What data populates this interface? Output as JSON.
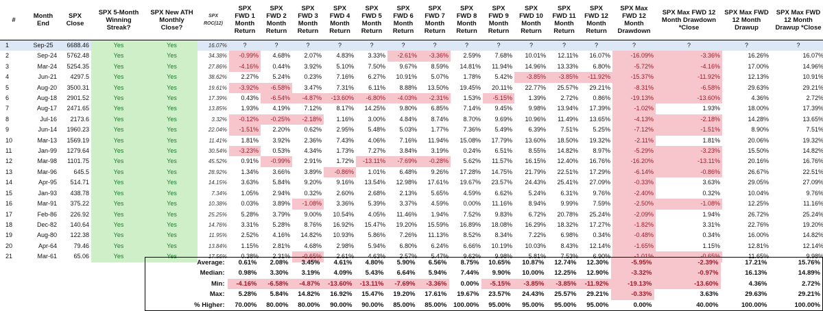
{
  "headers": [
    "#",
    "Month End",
    "SPX Close",
    "SPX 5-Month Winning Streak?",
    "SPX New ATH Monthly Close?",
    "SPX ROC(12)",
    "SPX FWD 1 Month Return",
    "SPX FWD 2 Month Return",
    "SPX FWD 3 Month Return",
    "SPX FWD 4 Month Return",
    "SPX FWD 5 Month Return",
    "SPX FWD 6 Month Return",
    "SPX FWD 7 Month Return",
    "SPX FWD 8 Month Return",
    "SPX FWD 9 Month Return",
    "SPX FWD 10 Month Return",
    "SPX FWD 11 Month Return",
    "SPX FWD 12 Month Return",
    "SPX Max FWD 12 Month Drawdown",
    "SPX Max FWD 12 Month Drawdown *Close",
    "SPX Max FWD 12 Month Drawup",
    "SPX Max FWD 12 Month Drawup *Close"
  ],
  "rows": [
    [
      "1",
      "Sep-25",
      "6688.46",
      "Yes",
      "Yes",
      "16.07%",
      "?",
      "?",
      "?",
      "?",
      "?",
      "?",
      "?",
      "?",
      "?",
      "?",
      "?",
      "?",
      "?",
      "?",
      "?",
      "?"
    ],
    [
      "2",
      "Sep-24",
      "5762.48",
      "Yes",
      "Yes",
      "34.38%",
      "-0.99%",
      "4.68%",
      "2.07%",
      "4.83%",
      "3.33%",
      "-2.61%",
      "-3.36%",
      "2.59%",
      "7.68%",
      "10.01%",
      "12.11%",
      "16.07%",
      "-16.09%",
      "-3.36%",
      "16.26%",
      "16.07%"
    ],
    [
      "3",
      "Mar-24",
      "5254.35",
      "Yes",
      "Yes",
      "27.86%",
      "-4.16%",
      "0.44%",
      "3.92%",
      "5.10%",
      "7.50%",
      "9.67%",
      "8.59%",
      "14.81%",
      "11.94%",
      "14.96%",
      "13.33%",
      "6.80%",
      "-5.72%",
      "-4.16%",
      "17.00%",
      "14.96%"
    ],
    [
      "4",
      "Jun-21",
      "4297.5",
      "Yes",
      "Yes",
      "38.62%",
      "2.27%",
      "5.24%",
      "0.23%",
      "7.16%",
      "6.27%",
      "10.91%",
      "5.07%",
      "1.78%",
      "5.42%",
      "-3.85%",
      "-3.85%",
      "-11.92%",
      "-15.37%",
      "-11.92%",
      "12.13%",
      "10.91%"
    ],
    [
      "5",
      "Aug-20",
      "3500.31",
      "Yes",
      "Yes",
      "19.61%",
      "-3.92%",
      "-6.58%",
      "3.47%",
      "7.31%",
      "6.11%",
      "8.88%",
      "13.50%",
      "19.45%",
      "20.11%",
      "22.77%",
      "25.57%",
      "29.21%",
      "-8.31%",
      "-6.58%",
      "29.63%",
      "29.21%"
    ],
    [
      "6",
      "Aug-18",
      "2901.52",
      "Yes",
      "Yes",
      "17.39%",
      "0.43%",
      "-6.54%",
      "-4.87%",
      "-13.60%",
      "-6.80%",
      "-4.03%",
      "-2.31%",
      "1.53%",
      "-5.15%",
      "1.39%",
      "2.72%",
      "0.86%",
      "-19.13%",
      "-13.60%",
      "4.36%",
      "2.72%"
    ],
    [
      "7",
      "Aug-17",
      "2471.65",
      "Yes",
      "Yes",
      "13.85%",
      "1.93%",
      "4.19%",
      "7.12%",
      "8.17%",
      "14.25%",
      "9.80%",
      "6.85%",
      "7.14%",
      "9.45%",
      "9.98%",
      "13.94%",
      "17.39%",
      "-1.02%",
      "1.93%",
      "18.00%",
      "17.39%"
    ],
    [
      "8",
      "Jul-16",
      "2173.6",
      "Yes",
      "Yes",
      "3.32%",
      "-0.12%",
      "-0.25%",
      "-2.18%",
      "1.16%",
      "3.00%",
      "4.84%",
      "8.74%",
      "8.70%",
      "9.69%",
      "10.96%",
      "11.49%",
      "13.65%",
      "-4.13%",
      "-2.18%",
      "14.28%",
      "13.65%"
    ],
    [
      "9",
      "Jun-14",
      "1960.23",
      "Yes",
      "Yes",
      "22.04%",
      "-1.51%",
      "2.20%",
      "0.62%",
      "2.95%",
      "5.48%",
      "5.03%",
      "1.77%",
      "7.36%",
      "5.49%",
      "6.39%",
      "7.51%",
      "5.25%",
      "-7.12%",
      "-1.51%",
      "8.90%",
      "7.51%"
    ],
    [
      "10",
      "Mar-13",
      "1569.19",
      "Yes",
      "Yes",
      "11.41%",
      "1.81%",
      "3.92%",
      "2.36%",
      "7.43%",
      "4.06%",
      "7.16%",
      "11.94%",
      "15.08%",
      "17.79%",
      "13.60%",
      "18.50%",
      "19.32%",
      "-2.11%",
      "1.81%",
      "20.06%",
      "19.32%"
    ],
    [
      "11",
      "Jan-99",
      "1279.64",
      "Yes",
      "Yes",
      "30.54%",
      "-3.23%",
      "0.53%",
      "4.34%",
      "1.73%",
      "7.27%",
      "3.84%",
      "3.19%",
      "0.24%",
      "6.51%",
      "8.55%",
      "14.82%",
      "8.97%",
      "-5.29%",
      "-3.23%",
      "15.50%",
      "14.82%"
    ],
    [
      "12",
      "Mar-98",
      "1101.75",
      "Yes",
      "Yes",
      "45.52%",
      "0.91%",
      "-0.99%",
      "2.91%",
      "1.72%",
      "-13.11%",
      "-7.69%",
      "-0.28%",
      "5.62%",
      "11.57%",
      "16.15%",
      "12.40%",
      "16.76%",
      "-16.20%",
      "-13.11%",
      "20.16%",
      "16.76%"
    ],
    [
      "13",
      "Mar-96",
      "645.5",
      "Yes",
      "Yes",
      "28.92%",
      "1.34%",
      "3.66%",
      "3.89%",
      "-0.86%",
      "1.01%",
      "6.48%",
      "9.26%",
      "17.28%",
      "14.75%",
      "21.79%",
      "22.51%",
      "17.29%",
      "-6.14%",
      "-0.86%",
      "26.67%",
      "22.51%"
    ],
    [
      "14",
      "Apr-95",
      "514.71",
      "Yes",
      "Yes",
      "14.15%",
      "3.63%",
      "5.84%",
      "9.20%",
      "9.16%",
      "13.54%",
      "12.98%",
      "17.61%",
      "19.67%",
      "23.57%",
      "24.43%",
      "25.41%",
      "27.09%",
      "-0.33%",
      "3.63%",
      "29.05%",
      "27.09%"
    ],
    [
      "15",
      "Jan-93",
      "438.78",
      "Yes",
      "Yes",
      "7.34%",
      "1.05%",
      "2.94%",
      "0.32%",
      "2.60%",
      "2.68%",
      "2.13%",
      "5.65%",
      "4.59%",
      "6.62%",
      "5.24%",
      "6.31%",
      "9.76%",
      "-2.40%",
      "0.32%",
      "10.04%",
      "9.76%"
    ],
    [
      "16",
      "Mar-91",
      "375.22",
      "Yes",
      "Yes",
      "10.38%",
      "0.03%",
      "3.89%",
      "-1.08%",
      "3.36%",
      "5.39%",
      "3.37%",
      "4.59%",
      "0.00%",
      "11.16%",
      "8.94%",
      "9.99%",
      "7.59%",
      "-2.50%",
      "-1.08%",
      "12.25%",
      "11.16%"
    ],
    [
      "17",
      "Feb-86",
      "226.92",
      "Yes",
      "Yes",
      "25.25%",
      "5.28%",
      "3.79%",
      "9.00%",
      "10.54%",
      "4.05%",
      "11.46%",
      "1.94%",
      "7.52%",
      "9.83%",
      "6.72%",
      "20.78%",
      "25.24%",
      "-2.09%",
      "1.94%",
      "26.72%",
      "25.24%"
    ],
    [
      "18",
      "Dec-82",
      "140.64",
      "Yes",
      "Yes",
      "14.76%",
      "3.31%",
      "5.28%",
      "8.76%",
      "16.92%",
      "15.47%",
      "19.20%",
      "15.59%",
      "16.89%",
      "18.08%",
      "16.29%",
      "18.32%",
      "17.27%",
      "-1.82%",
      "3.31%",
      "22.76%",
      "19.20%"
    ],
    [
      "19",
      "Aug-80",
      "122.38",
      "Yes",
      "Yes",
      "11.95%",
      "2.52%",
      "4.16%",
      "14.82%",
      "10.93%",
      "5.86%",
      "7.26%",
      "11.13%",
      "8.52%",
      "8.34%",
      "7.22%",
      "6.98%",
      "0.34%",
      "-0.48%",
      "0.34%",
      "16.00%",
      "14.82%"
    ],
    [
      "20",
      "Apr-64",
      "79.46",
      "Yes",
      "Yes",
      "13.84%",
      "1.15%",
      "2.81%",
      "4.68%",
      "2.98%",
      "5.94%",
      "6.80%",
      "6.24%",
      "6.66%",
      "10.19%",
      "10.03%",
      "8.43%",
      "12.14%",
      "-1.65%",
      "1.15%",
      "12.81%",
      "12.14%"
    ],
    [
      "21",
      "Mar-61",
      "65.06",
      "Yes",
      "Yes",
      "17.56%",
      "0.38%",
      "2.31%",
      "-0.65%",
      "2.61%",
      "4.63%",
      "2.57%",
      "5.47%",
      "9.62%",
      "9.98%",
      "5.81%",
      "7.53%",
      "6.90%",
      "-1.01%",
      "-0.65%",
      "11.65%",
      "9.98%"
    ]
  ],
  "stats": [
    [
      "Average:",
      "0.61%",
      "2.08%",
      "3.45%",
      "4.61%",
      "4.80%",
      "5.90%",
      "6.56%",
      "8.75%",
      "10.65%",
      "10.87%",
      "12.74%",
      "12.30%",
      "-5.95%",
      "-2.39%",
      "17.21%",
      "15.76%"
    ],
    [
      "Median:",
      "0.98%",
      "3.30%",
      "3.19%",
      "4.09%",
      "5.43%",
      "6.64%",
      "5.94%",
      "7.44%",
      "9.90%",
      "10.00%",
      "12.25%",
      "12.90%",
      "-3.32%",
      "-0.97%",
      "16.13%",
      "14.89%"
    ],
    [
      "Min:",
      "-4.16%",
      "-6.58%",
      "-4.87%",
      "-13.60%",
      "-13.11%",
      "-7.69%",
      "-3.36%",
      "0.00%",
      "-5.15%",
      "-3.85%",
      "-3.85%",
      "-11.92%",
      "-19.13%",
      "-13.60%",
      "4.36%",
      "2.72%"
    ],
    [
      "Max:",
      "5.28%",
      "5.84%",
      "14.82%",
      "16.92%",
      "15.47%",
      "19.20%",
      "17.61%",
      "19.67%",
      "23.57%",
      "24.43%",
      "25.57%",
      "29.21%",
      "-0.33%",
      "3.63%",
      "29.63%",
      "29.21%"
    ],
    [
      "% Higher:",
      "70.00%",
      "80.00%",
      "80.00%",
      "90.00%",
      "90.00%",
      "85.00%",
      "85.00%",
      "100.00%",
      "95.00%",
      "95.00%",
      "95.00%",
      "95.00%",
      "0.00%",
      "40.00%",
      "100.00%",
      "100.00%"
    ]
  ],
  "colors": {
    "positive_fill": "#cfefc9",
    "negative_fill": "#f7c6cc",
    "first_row_fill": "#dde8f6"
  }
}
